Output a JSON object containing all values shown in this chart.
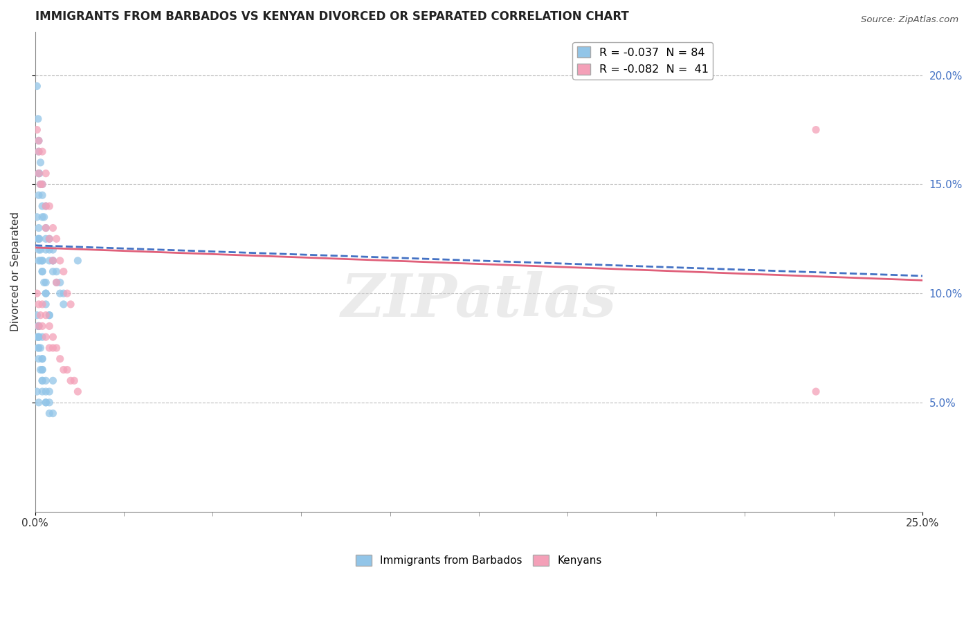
{
  "title": "IMMIGRANTS FROM BARBADOS VS KENYAN DIVORCED OR SEPARATED CORRELATION CHART",
  "source": "Source: ZipAtlas.com",
  "ylabel": "Divorced or Separated",
  "xlabel_blue": "Immigrants from Barbados",
  "xlabel_pink": "Kenyans",
  "R_blue": -0.037,
  "N_blue": 84,
  "R_pink": -0.082,
  "N_pink": 41,
  "color_blue": "#92C5E8",
  "color_pink": "#F4A0B8",
  "trend_blue_color": "#4472C4",
  "trend_pink_color": "#E0607A",
  "xlim": [
    0.0,
    0.25
  ],
  "ylim": [
    0.0,
    0.22
  ],
  "x_ticks": [
    0.0,
    0.25
  ],
  "y_ticks": [
    0.05,
    0.1,
    0.15,
    0.2
  ],
  "watermark_text": "ZIPatlas",
  "blue_scatter_x": [
    0.0005,
    0.0008,
    0.001,
    0.001,
    0.001,
    0.001,
    0.0012,
    0.0015,
    0.0015,
    0.002,
    0.002,
    0.002,
    0.002,
    0.0025,
    0.003,
    0.003,
    0.003,
    0.003,
    0.004,
    0.004,
    0.004,
    0.005,
    0.005,
    0.005,
    0.006,
    0.006,
    0.007,
    0.007,
    0.008,
    0.008,
    0.0005,
    0.0008,
    0.001,
    0.001,
    0.001,
    0.001,
    0.0012,
    0.0015,
    0.0015,
    0.002,
    0.002,
    0.002,
    0.002,
    0.0025,
    0.003,
    0.003,
    0.003,
    0.003,
    0.004,
    0.004,
    0.0005,
    0.0008,
    0.001,
    0.001,
    0.001,
    0.001,
    0.001,
    0.0015,
    0.002,
    0.002,
    0.002,
    0.002,
    0.002,
    0.003,
    0.003,
    0.003,
    0.004,
    0.004,
    0.005,
    0.005,
    0.0005,
    0.0008,
    0.001,
    0.0015,
    0.002,
    0.002,
    0.003,
    0.004,
    0.005,
    0.012,
    0.0005,
    0.001,
    0.001,
    0.002
  ],
  "blue_scatter_y": [
    0.195,
    0.18,
    0.165,
    0.155,
    0.145,
    0.17,
    0.155,
    0.15,
    0.16,
    0.145,
    0.14,
    0.135,
    0.15,
    0.135,
    0.13,
    0.125,
    0.14,
    0.12,
    0.125,
    0.12,
    0.115,
    0.115,
    0.11,
    0.12,
    0.105,
    0.11,
    0.105,
    0.1,
    0.1,
    0.095,
    0.135,
    0.125,
    0.125,
    0.12,
    0.115,
    0.13,
    0.125,
    0.12,
    0.115,
    0.115,
    0.11,
    0.115,
    0.11,
    0.105,
    0.1,
    0.105,
    0.1,
    0.095,
    0.09,
    0.09,
    0.09,
    0.085,
    0.085,
    0.08,
    0.075,
    0.085,
    0.08,
    0.075,
    0.07,
    0.07,
    0.065,
    0.06,
    0.065,
    0.06,
    0.055,
    0.05,
    0.055,
    0.05,
    0.045,
    0.06,
    0.08,
    0.075,
    0.07,
    0.065,
    0.06,
    0.055,
    0.05,
    0.045,
    0.115,
    0.115,
    0.055,
    0.05,
    0.08,
    0.08
  ],
  "pink_scatter_x": [
    0.0005,
    0.001,
    0.001,
    0.001,
    0.0015,
    0.002,
    0.002,
    0.003,
    0.003,
    0.003,
    0.004,
    0.004,
    0.005,
    0.005,
    0.006,
    0.006,
    0.007,
    0.008,
    0.009,
    0.01,
    0.0005,
    0.001,
    0.001,
    0.0015,
    0.002,
    0.002,
    0.003,
    0.003,
    0.004,
    0.004,
    0.005,
    0.005,
    0.006,
    0.007,
    0.008,
    0.009,
    0.01,
    0.011,
    0.012,
    0.22,
    0.22
  ],
  "pink_scatter_y": [
    0.175,
    0.17,
    0.165,
    0.155,
    0.15,
    0.165,
    0.15,
    0.155,
    0.14,
    0.13,
    0.14,
    0.125,
    0.13,
    0.115,
    0.125,
    0.105,
    0.115,
    0.11,
    0.1,
    0.095,
    0.1,
    0.095,
    0.085,
    0.09,
    0.085,
    0.095,
    0.08,
    0.09,
    0.075,
    0.085,
    0.08,
    0.075,
    0.075,
    0.07,
    0.065,
    0.065,
    0.06,
    0.06,
    0.055,
    0.175,
    0.055
  ],
  "trend_blue_x0": 0.0,
  "trend_blue_x1": 0.25,
  "trend_blue_y0": 0.122,
  "trend_blue_y1": 0.108,
  "trend_pink_x0": 0.0,
  "trend_pink_x1": 0.25,
  "trend_pink_y0": 0.121,
  "trend_pink_y1": 0.106
}
